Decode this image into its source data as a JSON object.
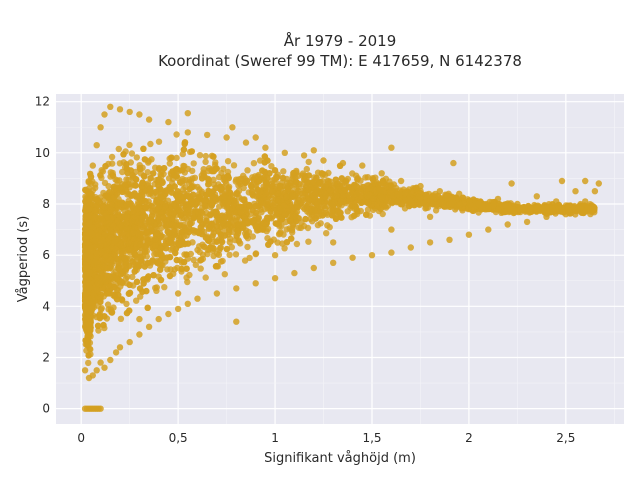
{
  "chart_data": {
    "type": "scatter",
    "title_lines": [
      "År 1979 - 2019",
      "Koordinat (Sweref 99 TM): E 417659, N 6142378"
    ],
    "xlabel": "Signifikant våghöjd (m)",
    "ylabel": "Vågperiod (s)",
    "xlim": [
      -0.13,
      2.8
    ],
    "ylim": [
      -0.6,
      12.3
    ],
    "x_ticks": [
      0,
      0.5,
      1,
      1.5,
      2,
      2.5
    ],
    "x_tick_labels": [
      "0",
      "0,5",
      "1",
      "1,5",
      "2",
      "2,5"
    ],
    "y_ticks": [
      0,
      2,
      4,
      6,
      8,
      10,
      12
    ],
    "y_tick_labels": [
      "0",
      "2",
      "4",
      "6",
      "8",
      "10",
      "12"
    ],
    "grid": true,
    "marker_color": "#d4a020",
    "background_color": "#e8e8f1",
    "points": [
      [
        0.02,
        0
      ],
      [
        0.03,
        0
      ],
      [
        0.04,
        0
      ],
      [
        0.05,
        0
      ],
      [
        0.06,
        0
      ],
      [
        0.07,
        0
      ],
      [
        0.08,
        0
      ],
      [
        0.09,
        0
      ],
      [
        0.1,
        0
      ],
      [
        0.02,
        1.5
      ],
      [
        0.04,
        1.2
      ],
      [
        0.06,
        1.3
      ],
      [
        0.08,
        1.5
      ],
      [
        0.1,
        1.8
      ],
      [
        0.12,
        1.6
      ],
      [
        0.15,
        1.9
      ],
      [
        0.18,
        2.2
      ],
      [
        0.2,
        2.4
      ],
      [
        0.25,
        2.6
      ],
      [
        0.3,
        2.9
      ],
      [
        0.35,
        3.2
      ],
      [
        0.4,
        3.5
      ],
      [
        0.45,
        3.7
      ],
      [
        0.5,
        3.9
      ],
      [
        0.55,
        4.1
      ],
      [
        0.6,
        4.3
      ],
      [
        0.7,
        4.5
      ],
      [
        0.8,
        4.7
      ],
      [
        0.9,
        4.9
      ],
      [
        1.0,
        5.1
      ],
      [
        1.1,
        5.3
      ],
      [
        1.2,
        5.5
      ],
      [
        1.3,
        5.7
      ],
      [
        1.4,
        5.9
      ],
      [
        1.5,
        6.0
      ],
      [
        1.6,
        6.1
      ],
      [
        1.7,
        6.3
      ],
      [
        1.8,
        6.5
      ],
      [
        1.9,
        6.6
      ],
      [
        2.0,
        6.8
      ],
      [
        2.1,
        7.0
      ],
      [
        2.2,
        7.2
      ],
      [
        2.3,
        7.3
      ],
      [
        2.4,
        7.5
      ],
      [
        2.5,
        7.6
      ],
      [
        2.6,
        8.1
      ],
      [
        2.65,
        8.5
      ],
      [
        2.67,
        8.8
      ],
      [
        2.6,
        8.9
      ],
      [
        2.55,
        8.5
      ],
      [
        2.45,
        8.1
      ],
      [
        2.35,
        8.3
      ],
      [
        2.25,
        8.0
      ],
      [
        2.15,
        8.2
      ],
      [
        2.05,
        8.0
      ],
      [
        1.95,
        8.4
      ],
      [
        1.85,
        8.5
      ],
      [
        1.75,
        8.7
      ],
      [
        1.65,
        8.9
      ],
      [
        1.55,
        9.2
      ],
      [
        1.45,
        9.5
      ],
      [
        1.35,
        9.6
      ],
      [
        1.25,
        9.7
      ],
      [
        1.15,
        9.9
      ],
      [
        1.05,
        10.0
      ],
      [
        0.95,
        10.2
      ],
      [
        0.85,
        10.4
      ],
      [
        0.75,
        10.6
      ],
      [
        0.65,
        10.7
      ],
      [
        0.55,
        10.8
      ],
      [
        0.45,
        11.2
      ],
      [
        0.35,
        11.3
      ],
      [
        0.3,
        11.5
      ],
      [
        0.25,
        11.6
      ],
      [
        0.2,
        11.7
      ],
      [
        0.15,
        11.8
      ],
      [
        0.12,
        11.5
      ],
      [
        0.1,
        11.0
      ],
      [
        0.08,
        10.3
      ],
      [
        0.06,
        9.5
      ],
      [
        0.05,
        8.8
      ],
      [
        0.04,
        7.8
      ],
      [
        0.03,
        6.5
      ],
      [
        0.02,
        5.5
      ],
      [
        0.02,
        4.5
      ],
      [
        0.02,
        3.5
      ],
      [
        0.03,
        2.5
      ],
      [
        1.6,
        10.2
      ],
      [
        1.2,
        10.1
      ],
      [
        1.92,
        9.6
      ],
      [
        2.22,
        8.8
      ],
      [
        2.48,
        8.9
      ],
      [
        0.9,
        10.6
      ],
      [
        0.78,
        11.0
      ],
      [
        0.55,
        11.55
      ],
      [
        0.3,
        3.5
      ],
      [
        0.5,
        4.5
      ],
      [
        0.8,
        3.4
      ],
      [
        1.0,
        6.0
      ],
      [
        1.3,
        6.5
      ],
      [
        1.6,
        7.0
      ],
      [
        1.8,
        7.5
      ],
      [
        2.1,
        7.8
      ]
    ]
  }
}
